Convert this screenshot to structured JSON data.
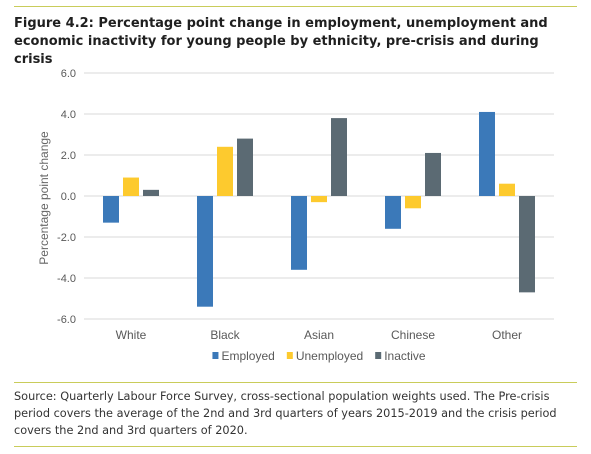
{
  "figure": {
    "title": "Figure 4.2: Percentage point change in employment, unemployment and economic inactivity for young people by ethnicity, pre-crisis and during crisis",
    "source_note": "Source: Quarterly Labour Force Survey, cross-sectional population weights used. The Pre-crisis period covers the average of the 2nd and 3rd quarters of years 2015-2019 and the crisis period covers the 2nd and 3rd quarters of 2020."
  },
  "chart_data": {
    "type": "bar",
    "title": "",
    "xlabel": "",
    "ylabel": "Percentage point change",
    "categories": [
      "White",
      "Black",
      "Asian",
      "Chinese",
      "Other"
    ],
    "series": [
      {
        "name": "Employed",
        "color": "#3b79b9",
        "values": [
          -1.3,
          -5.4,
          -3.6,
          -1.6,
          4.1
        ]
      },
      {
        "name": "Unemployed",
        "color": "#fdca2e",
        "values": [
          0.9,
          2.4,
          -0.3,
          -0.6,
          0.6
        ]
      },
      {
        "name": "Inactive",
        "color": "#5b6a73",
        "values": [
          0.3,
          2.8,
          3.8,
          2.1,
          -4.7
        ]
      }
    ],
    "ylim": [
      -6.0,
      6.0
    ],
    "yticks": [
      6.0,
      4.0,
      2.0,
      0.0,
      -2.0,
      -4.0,
      -6.0
    ],
    "ytick_labels": [
      "6.0",
      "4.0",
      "2.0",
      "0.0",
      "-2.0",
      "-4.0",
      "-6.0"
    ],
    "grid": true,
    "legend_position": "bottom"
  }
}
